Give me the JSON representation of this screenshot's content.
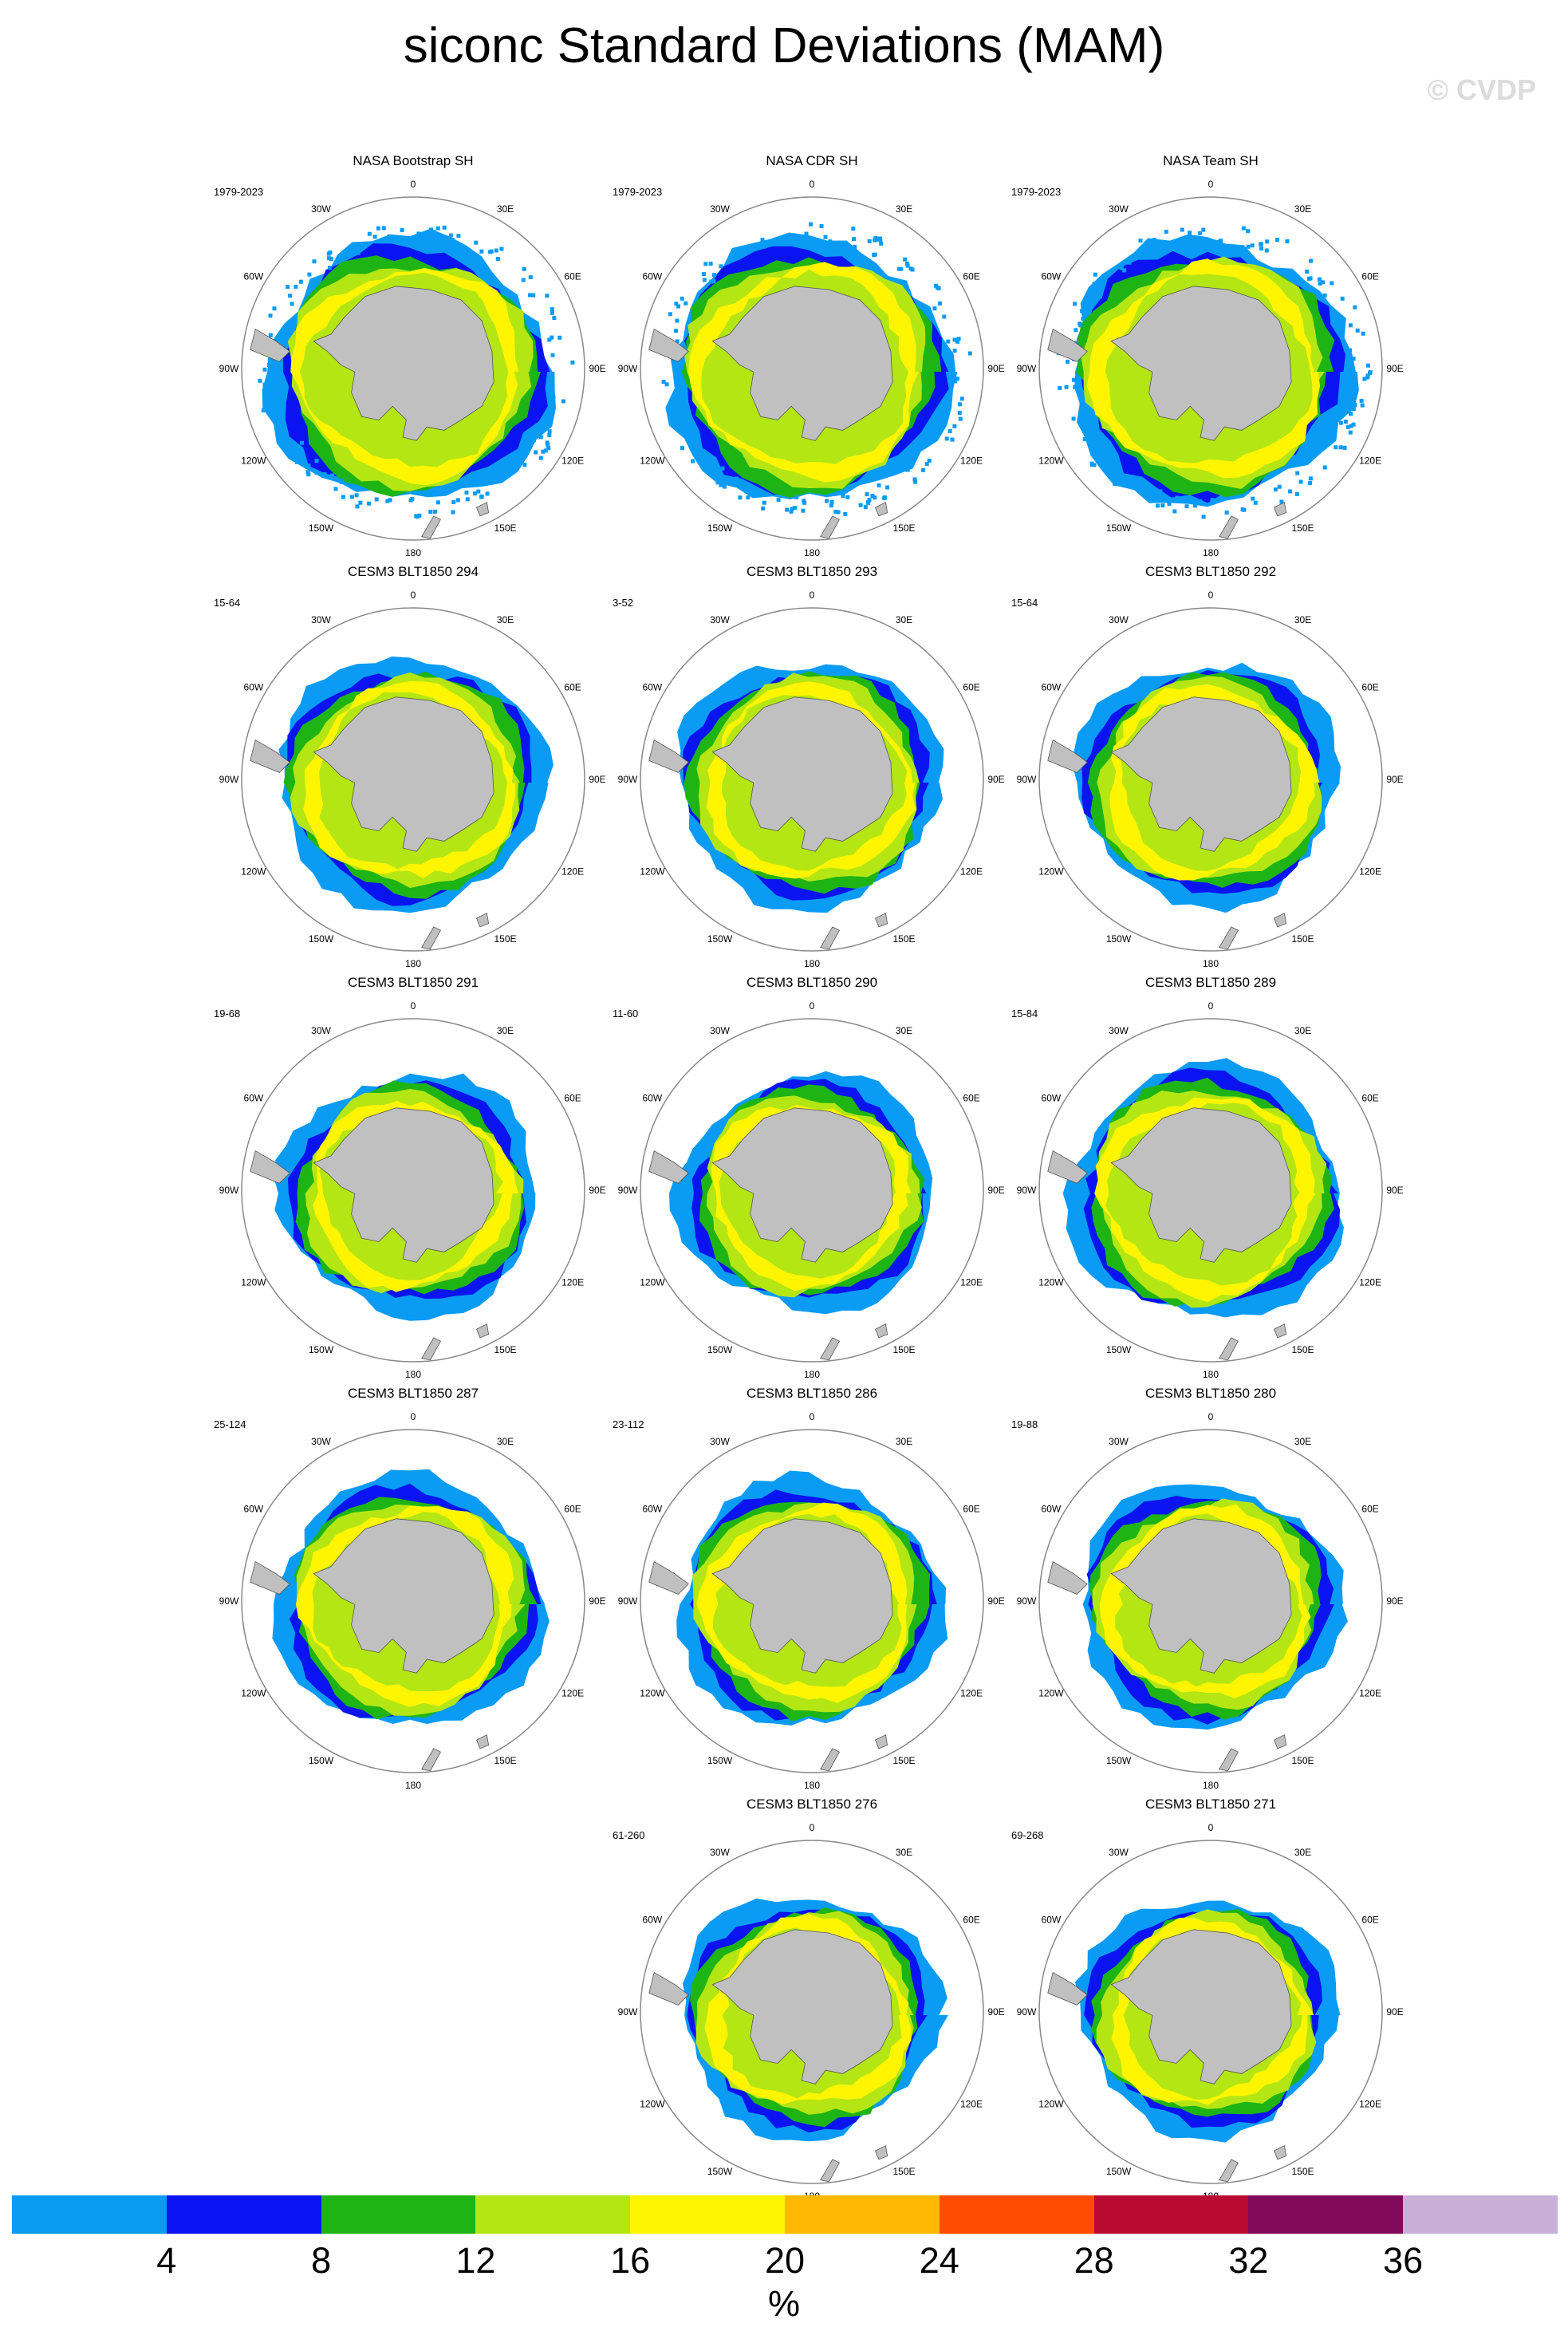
{
  "title": "siconc Standard Deviations (MAM)",
  "watermark": "© CVDP",
  "units": "%",
  "lon_labels": [
    "0",
    "30E",
    "60E",
    "90E",
    "120E",
    "150E",
    "180",
    "150W",
    "120W",
    "90W",
    "60W",
    "30W"
  ],
  "colorbar": {
    "colors": [
      "#0a9bf5",
      "#0a14f0",
      "#1eb414",
      "#b4e614",
      "#fff500",
      "#ffb900",
      "#ff4b00",
      "#b90a32",
      "#820a5a",
      "#c8afd7"
    ],
    "tick_labels": [
      "4",
      "8",
      "12",
      "16",
      "20",
      "24",
      "28",
      "32",
      "36"
    ]
  },
  "colors": {
    "land": "#c0c0c0",
    "land_outline": "#555555",
    "ocean": "#ffffff",
    "circle": "#888888"
  },
  "panels": [
    {
      "title": "NASA Bootstrap SH",
      "years": "1979-2023",
      "row": 0,
      "col": 0
    },
    {
      "title": "NASA CDR SH",
      "years": "1979-2023",
      "row": 0,
      "col": 1
    },
    {
      "title": "NASA Team SH",
      "years": "1979-2023",
      "row": 0,
      "col": 2
    },
    {
      "title": "CESM3 BLT1850 294",
      "years": "15-64",
      "row": 1,
      "col": 0
    },
    {
      "title": "CESM3 BLT1850 293",
      "years": "3-52",
      "row": 1,
      "col": 1
    },
    {
      "title": "CESM3 BLT1850 292",
      "years": "15-64",
      "row": 1,
      "col": 2
    },
    {
      "title": "CESM3 BLT1850 291",
      "years": "19-68",
      "row": 2,
      "col": 0
    },
    {
      "title": "CESM3 BLT1850 290",
      "years": "11-60",
      "row": 2,
      "col": 1
    },
    {
      "title": "CESM3 BLT1850 289",
      "years": "15-84",
      "row": 2,
      "col": 2
    },
    {
      "title": "CESM3 BLT1850 287",
      "years": "25-124",
      "row": 3,
      "col": 0
    },
    {
      "title": "CESM3 BLT1850 286",
      "years": "23-112",
      "row": 3,
      "col": 1
    },
    {
      "title": "CESM3 BLT1850 280",
      "years": "19-88",
      "row": 3,
      "col": 2
    },
    {
      "title": "CESM3 BLT1850 276",
      "years": "61-260",
      "row": 4,
      "col": 1
    },
    {
      "title": "CESM3 BLT1850 271",
      "years": "69-268",
      "row": 4,
      "col": 2
    }
  ]
}
